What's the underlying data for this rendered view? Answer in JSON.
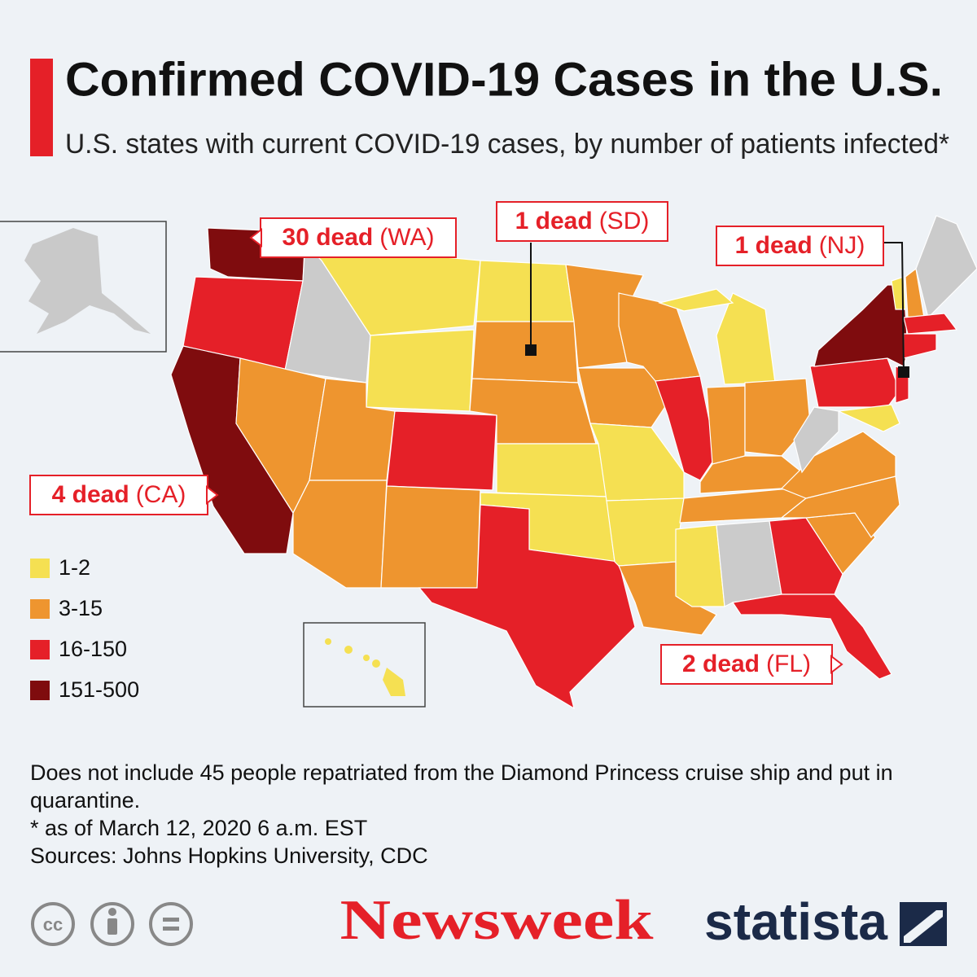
{
  "header": {
    "title": "Confirmed COVID-19 Cases in the U.S.",
    "subtitle": "U.S. states with current COVID-19 cases, by number of patients infected*"
  },
  "callouts": [
    {
      "count": "30 dead",
      "state": "(WA)"
    },
    {
      "count": "1 dead",
      "state": "(SD)"
    },
    {
      "count": "1 dead",
      "state": "(NJ)"
    },
    {
      "count": "4 dead",
      "state": "(CA)"
    },
    {
      "count": "2 dead",
      "state": "(FL)"
    }
  ],
  "legend": [
    {
      "label": "1-2",
      "color": "#f5e052"
    },
    {
      "label": "3-15",
      "color": "#ee952f"
    },
    {
      "label": "16-150",
      "color": "#e52028"
    },
    {
      "label": "151-500",
      "color": "#7f0c0e"
    }
  ],
  "notes": [
    "Does not include 45 people repatriated from the Diamond Princess cruise ship and put in quarantine.",
    "* as of March 12, 2020 6 a.m. EST",
    "Sources: Johns Hopkins University, CDC"
  ],
  "footer": {
    "license": "cc",
    "brand": "Newsweek",
    "source_brand": "statista"
  }
}
